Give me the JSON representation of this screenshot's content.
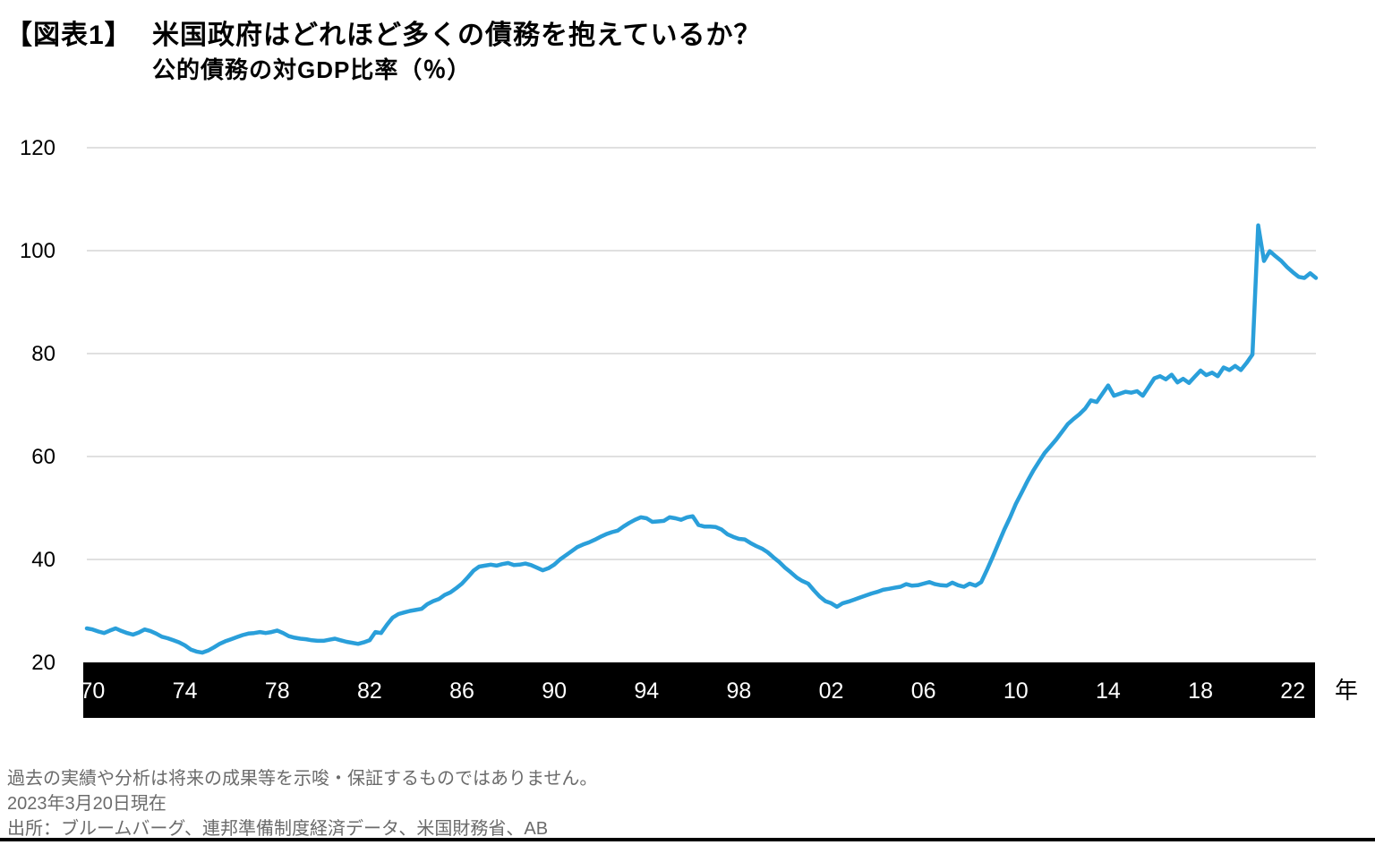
{
  "header": {
    "figure_label": "【図表1】",
    "title": "米国政府はどれほど多くの債務を抱えているか？",
    "subtitle": "公的債務の対GDP比率（％）"
  },
  "footer": {
    "disclaimer": "過去の実績や分析は将来の成果等を示唆・保証するものではありません。",
    "as_of": "2023年3月20日現在",
    "source": "出所：ブルームバーグ、連邦準備制度経済データ、米国財務省、AB"
  },
  "chart_data": {
    "type": "line",
    "title": "米国政府はどれほど多くの債務を抱えているか？",
    "subtitle": "公的債務の対GDP比率（％）",
    "xlabel": "年",
    "ylabel": "",
    "x_range": [
      1969.75,
      2023.0
    ],
    "ylim": [
      20,
      122
    ],
    "yticks": [
      20,
      40,
      60,
      80,
      100,
      120
    ],
    "grid_yticks": [
      40,
      60,
      80,
      100,
      120
    ],
    "xticks": [
      {
        "t": 1970,
        "label": "70"
      },
      {
        "t": 1974,
        "label": "74"
      },
      {
        "t": 1978,
        "label": "78"
      },
      {
        "t": 1982,
        "label": "82"
      },
      {
        "t": 1986,
        "label": "86"
      },
      {
        "t": 1990,
        "label": "90"
      },
      {
        "t": 1994,
        "label": "94"
      },
      {
        "t": 1998,
        "label": "98"
      },
      {
        "t": 2002,
        "label": "02"
      },
      {
        "t": 2006,
        "label": "06"
      },
      {
        "t": 2010,
        "label": "10"
      },
      {
        "t": 2014,
        "label": "14"
      },
      {
        "t": 2018,
        "label": "18"
      },
      {
        "t": 2022,
        "label": "22"
      }
    ],
    "legend": "none",
    "grid": "horizontal-only",
    "colors": {
      "line": "#2A9FDA",
      "grid": "#D6D6D6",
      "axis_bar": "#000000",
      "axis_text_on_bar": "#FFFFFF",
      "tick_text": "#000000",
      "footer_text": "#6B6B6B"
    },
    "series": [
      {
        "name": "公的債務の対GDP比率（％）",
        "points": [
          [
            1969.75,
            26.6
          ],
          [
            1970,
            26.4
          ],
          [
            1970.25,
            26.0
          ],
          [
            1970.5,
            25.7
          ],
          [
            1970.75,
            26.2
          ],
          [
            1971,
            26.6
          ],
          [
            1971.25,
            26.1
          ],
          [
            1971.5,
            25.7
          ],
          [
            1971.75,
            25.4
          ],
          [
            1972,
            25.8
          ],
          [
            1972.25,
            26.4
          ],
          [
            1972.5,
            26.1
          ],
          [
            1972.75,
            25.6
          ],
          [
            1973,
            25.0
          ],
          [
            1973.25,
            24.7
          ],
          [
            1973.5,
            24.3
          ],
          [
            1973.75,
            23.9
          ],
          [
            1974,
            23.3
          ],
          [
            1974.25,
            22.5
          ],
          [
            1974.5,
            22.1
          ],
          [
            1974.75,
            21.9
          ],
          [
            1975,
            22.3
          ],
          [
            1975.25,
            22.9
          ],
          [
            1975.5,
            23.6
          ],
          [
            1975.75,
            24.1
          ],
          [
            1976,
            24.5
          ],
          [
            1976.25,
            24.9
          ],
          [
            1976.5,
            25.3
          ],
          [
            1976.75,
            25.6
          ],
          [
            1977,
            25.7
          ],
          [
            1977.25,
            25.9
          ],
          [
            1977.5,
            25.7
          ],
          [
            1977.75,
            25.9
          ],
          [
            1978,
            26.2
          ],
          [
            1978.25,
            25.7
          ],
          [
            1978.5,
            25.1
          ],
          [
            1978.75,
            24.8
          ],
          [
            1979,
            24.6
          ],
          [
            1979.25,
            24.5
          ],
          [
            1979.5,
            24.3
          ],
          [
            1979.75,
            24.2
          ],
          [
            1980,
            24.2
          ],
          [
            1980.25,
            24.4
          ],
          [
            1980.5,
            24.6
          ],
          [
            1980.75,
            24.3
          ],
          [
            1981,
            24.0
          ],
          [
            1981.25,
            23.8
          ],
          [
            1981.5,
            23.6
          ],
          [
            1981.75,
            23.9
          ],
          [
            1982,
            24.3
          ],
          [
            1982.25,
            25.9
          ],
          [
            1982.5,
            25.7
          ],
          [
            1982.75,
            27.3
          ],
          [
            1983,
            28.7
          ],
          [
            1983.25,
            29.4
          ],
          [
            1983.5,
            29.7
          ],
          [
            1983.75,
            30.0
          ],
          [
            1984,
            30.2
          ],
          [
            1984.25,
            30.4
          ],
          [
            1984.5,
            31.3
          ],
          [
            1984.75,
            31.9
          ],
          [
            1985,
            32.3
          ],
          [
            1985.25,
            33.1
          ],
          [
            1985.5,
            33.6
          ],
          [
            1985.75,
            34.4
          ],
          [
            1986,
            35.3
          ],
          [
            1986.25,
            36.5
          ],
          [
            1986.5,
            37.8
          ],
          [
            1986.75,
            38.6
          ],
          [
            1987,
            38.8
          ],
          [
            1987.25,
            39.0
          ],
          [
            1987.5,
            38.8
          ],
          [
            1987.75,
            39.1
          ],
          [
            1988,
            39.3
          ],
          [
            1988.25,
            38.9
          ],
          [
            1988.5,
            39.0
          ],
          [
            1988.75,
            39.2
          ],
          [
            1989,
            38.9
          ],
          [
            1989.25,
            38.4
          ],
          [
            1989.5,
            37.9
          ],
          [
            1989.75,
            38.3
          ],
          [
            1990,
            39.0
          ],
          [
            1990.25,
            40.0
          ],
          [
            1990.5,
            40.8
          ],
          [
            1990.75,
            41.6
          ],
          [
            1991,
            42.4
          ],
          [
            1991.25,
            42.9
          ],
          [
            1991.5,
            43.3
          ],
          [
            1991.75,
            43.8
          ],
          [
            1992,
            44.4
          ],
          [
            1992.25,
            44.9
          ],
          [
            1992.5,
            45.3
          ],
          [
            1992.75,
            45.6
          ],
          [
            1993,
            46.4
          ],
          [
            1993.25,
            47.1
          ],
          [
            1993.5,
            47.7
          ],
          [
            1993.75,
            48.2
          ],
          [
            1994,
            48.0
          ],
          [
            1994.25,
            47.3
          ],
          [
            1994.5,
            47.4
          ],
          [
            1994.75,
            47.5
          ],
          [
            1995,
            48.2
          ],
          [
            1995.25,
            48.0
          ],
          [
            1995.5,
            47.7
          ],
          [
            1995.75,
            48.2
          ],
          [
            1996,
            48.4
          ],
          [
            1996.25,
            46.7
          ],
          [
            1996.5,
            46.4
          ],
          [
            1996.75,
            46.4
          ],
          [
            1997,
            46.3
          ],
          [
            1997.25,
            45.8
          ],
          [
            1997.5,
            44.9
          ],
          [
            1997.75,
            44.4
          ],
          [
            1998,
            44.0
          ],
          [
            1998.25,
            43.9
          ],
          [
            1998.5,
            43.2
          ],
          [
            1998.75,
            42.6
          ],
          [
            1999,
            42.1
          ],
          [
            1999.25,
            41.4
          ],
          [
            1999.5,
            40.4
          ],
          [
            1999.75,
            39.5
          ],
          [
            2000,
            38.4
          ],
          [
            2000.25,
            37.5
          ],
          [
            2000.5,
            36.5
          ],
          [
            2000.75,
            35.8
          ],
          [
            2001,
            35.3
          ],
          [
            2001.25,
            34.0
          ],
          [
            2001.5,
            32.8
          ],
          [
            2001.75,
            31.9
          ],
          [
            2002,
            31.5
          ],
          [
            2002.25,
            30.8
          ],
          [
            2002.5,
            31.5
          ],
          [
            2002.75,
            31.8
          ],
          [
            2003,
            32.2
          ],
          [
            2003.25,
            32.6
          ],
          [
            2003.5,
            33.0
          ],
          [
            2003.75,
            33.4
          ],
          [
            2004,
            33.7
          ],
          [
            2004.25,
            34.1
          ],
          [
            2004.5,
            34.3
          ],
          [
            2004.75,
            34.5
          ],
          [
            2005,
            34.7
          ],
          [
            2005.25,
            35.2
          ],
          [
            2005.5,
            34.9
          ],
          [
            2005.75,
            35.0
          ],
          [
            2006,
            35.3
          ],
          [
            2006.25,
            35.6
          ],
          [
            2006.5,
            35.2
          ],
          [
            2006.75,
            35.0
          ],
          [
            2007,
            34.9
          ],
          [
            2007.25,
            35.5
          ],
          [
            2007.5,
            35.0
          ],
          [
            2007.75,
            34.7
          ],
          [
            2008,
            35.3
          ],
          [
            2008.25,
            34.9
          ],
          [
            2008.5,
            35.6
          ],
          [
            2008.75,
            38.0
          ],
          [
            2009,
            40.5
          ],
          [
            2009.25,
            43.2
          ],
          [
            2009.5,
            45.8
          ],
          [
            2009.75,
            48.2
          ],
          [
            2010,
            50.8
          ],
          [
            2010.25,
            53.0
          ],
          [
            2010.5,
            55.2
          ],
          [
            2010.75,
            57.2
          ],
          [
            2011,
            59.0
          ],
          [
            2011.25,
            60.7
          ],
          [
            2011.5,
            62.0
          ],
          [
            2011.75,
            63.3
          ],
          [
            2012,
            64.8
          ],
          [
            2012.25,
            66.3
          ],
          [
            2012.5,
            67.3
          ],
          [
            2012.75,
            68.2
          ],
          [
            2013,
            69.3
          ],
          [
            2013.25,
            70.9
          ],
          [
            2013.5,
            70.6
          ],
          [
            2013.75,
            72.2
          ],
          [
            2014,
            73.8
          ],
          [
            2014.25,
            71.8
          ],
          [
            2014.5,
            72.2
          ],
          [
            2014.75,
            72.6
          ],
          [
            2015,
            72.4
          ],
          [
            2015.25,
            72.7
          ],
          [
            2015.5,
            71.8
          ],
          [
            2015.75,
            73.5
          ],
          [
            2016,
            75.2
          ],
          [
            2016.25,
            75.6
          ],
          [
            2016.5,
            75.0
          ],
          [
            2016.75,
            75.9
          ],
          [
            2017,
            74.4
          ],
          [
            2017.25,
            75.1
          ],
          [
            2017.5,
            74.3
          ],
          [
            2017.75,
            75.5
          ],
          [
            2018,
            76.7
          ],
          [
            2018.25,
            75.8
          ],
          [
            2018.5,
            76.3
          ],
          [
            2018.75,
            75.6
          ],
          [
            2019,
            77.3
          ],
          [
            2019.25,
            76.8
          ],
          [
            2019.5,
            77.6
          ],
          [
            2019.75,
            76.8
          ],
          [
            2020,
            78.2
          ],
          [
            2020.25,
            79.8
          ],
          [
            2020.5,
            104.9
          ],
          [
            2020.75,
            98.0
          ],
          [
            2021,
            99.9
          ],
          [
            2021.25,
            98.9
          ],
          [
            2021.5,
            98.0
          ],
          [
            2021.75,
            96.8
          ],
          [
            2022,
            95.8
          ],
          [
            2022.25,
            94.9
          ],
          [
            2022.5,
            94.7
          ],
          [
            2022.75,
            95.6
          ],
          [
            2023,
            94.7
          ]
        ]
      }
    ]
  }
}
